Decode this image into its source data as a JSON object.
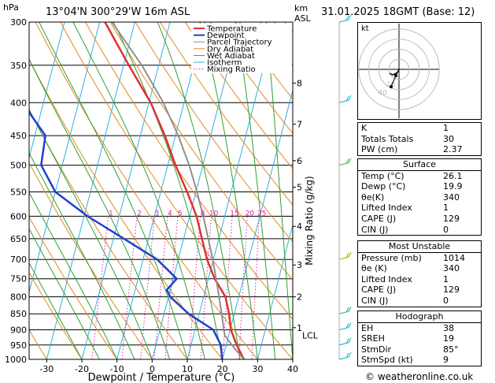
{
  "header": {
    "units_left": "hPa",
    "location": "13°04'N  300°29'W  16m  ASL",
    "units_right": "km",
    "units_right2": "ASL",
    "datetime": "31.01.2025  18GMT  (Base: 12)"
  },
  "chart_data": {
    "type": "line",
    "title": "",
    "xlabel": "Dewpoint / Temperature (°C)",
    "ylabel": "hPa",
    "y2label": "Mixing Ratio (g/kg)",
    "xlim": [
      -35,
      40
    ],
    "ylim": [
      1000,
      300
    ],
    "x_ticks": [
      -30,
      -20,
      -10,
      0,
      10,
      20,
      30,
      40
    ],
    "pressure_ticks": [
      300,
      350,
      400,
      450,
      500,
      550,
      600,
      650,
      700,
      750,
      800,
      850,
      900,
      950,
      1000
    ],
    "km_ticks": [
      {
        "label": "1",
        "p": 893
      },
      {
        "label": "2",
        "p": 800
      },
      {
        "label": "3",
        "p": 714
      },
      {
        "label": "4",
        "p": 622
      },
      {
        "label": "5",
        "p": 541
      },
      {
        "label": "6",
        "p": 492
      },
      {
        "label": "7",
        "p": 432
      },
      {
        "label": "8",
        "p": 373
      }
    ],
    "lcl": {
      "label": "LCL",
      "p": 918
    },
    "mixing_ratio_labels": [
      "1",
      "2",
      "3",
      "4",
      "5",
      "8",
      "10",
      "15",
      "20",
      "25"
    ],
    "mixing_ratios": [
      1,
      2,
      3,
      4,
      5,
      8,
      10,
      15,
      20,
      25
    ],
    "legend": [
      "Temperature",
      "Dewpoint",
      "Parcel Trajectory",
      "Dry Adiabat",
      "Wet Adiabat",
      "Isotherm",
      "Mixing Ratio"
    ],
    "legend_position": "top-right",
    "series": [
      {
        "name": "Temperature",
        "color": "#e03030",
        "p": [
          1000,
          950,
          900,
          850,
          800,
          750,
          700,
          650,
          600,
          550,
          500,
          450,
          400,
          350,
          300
        ],
        "values": [
          26.1,
          23.0,
          20.2,
          18.5,
          16.2,
          11.8,
          8.2,
          5.2,
          2.0,
          -2.5,
          -7.8,
          -13.0,
          -19.5,
          -28.5,
          -38.5
        ]
      },
      {
        "name": "Dewpoint",
        "color": "#2040d0",
        "p": [
          1000,
          950,
          900,
          850,
          800,
          780,
          750,
          700,
          650,
          600,
          550,
          500,
          450,
          400,
          350,
          300
        ],
        "values": [
          19.9,
          18.5,
          15.2,
          7.0,
          0.5,
          -1.0,
          1.0,
          -6.0,
          -17.0,
          -29.0,
          -40.0,
          -46.0,
          -47.0,
          -56.0,
          -63.0,
          -70.0
        ]
      },
      {
        "name": "Parcel Trajectory",
        "color": "#909090",
        "p": [
          1000,
          950,
          918,
          900,
          850,
          800,
          750,
          700,
          650,
          600,
          550,
          500,
          450,
          400,
          350,
          300
        ],
        "values": [
          26.1,
          21.6,
          18.9,
          18.2,
          16.4,
          14.4,
          12.2,
          9.8,
          7.0,
          3.9,
          0.3,
          -3.9,
          -9.2,
          -15.9,
          -24.8,
          -36.5
        ]
      }
    ]
  },
  "winds": [
    {
      "p": 300,
      "color": "#30c0c0"
    },
    {
      "p": 400,
      "color": "#30c0c0"
    },
    {
      "p": 500,
      "color": "#50c050"
    },
    {
      "p": 700,
      "color": "#a0c020"
    },
    {
      "p": 850,
      "color": "#30c090"
    },
    {
      "p": 900,
      "color": "#30c0c0"
    },
    {
      "p": 950,
      "color": "#30c0c0"
    },
    {
      "p": 1000,
      "color": "#30c0c0"
    }
  ],
  "hodograph": {
    "label": "kt",
    "rings_kt": [
      10,
      20,
      30,
      40
    ],
    "ring_labels": [
      "20",
      "40"
    ]
  },
  "indices": {
    "rows": [
      {
        "label": "K",
        "value": "1"
      },
      {
        "label": "Totals Totals",
        "value": "30"
      },
      {
        "label": "PW (cm)",
        "value": "2.37"
      }
    ]
  },
  "surface": {
    "title": "Surface",
    "rows": [
      {
        "label": "Temp (°C)",
        "value": "26.1"
      },
      {
        "label": "Dewp (°C)",
        "value": "19.9"
      },
      {
        "label": "θe(K)",
        "value": "340"
      },
      {
        "label": "Lifted Index",
        "value": "1"
      },
      {
        "label": "CAPE (J)",
        "value": "129"
      },
      {
        "label": "CIN (J)",
        "value": "0"
      }
    ]
  },
  "unstable": {
    "title": "Most Unstable",
    "rows": [
      {
        "label": "Pressure (mb)",
        "value": "1014"
      },
      {
        "label": "θe (K)",
        "value": "340"
      },
      {
        "label": "Lifted Index",
        "value": "1"
      },
      {
        "label": "CAPE (J)",
        "value": "129"
      },
      {
        "label": "CIN (J)",
        "value": "0"
      }
    ]
  },
  "hodo_stats": {
    "title": "Hodograph",
    "rows": [
      {
        "label": "EH",
        "value": "38"
      },
      {
        "label": "SREH",
        "value": "19"
      },
      {
        "label": "StmDir",
        "value": "85°"
      },
      {
        "label": "StmSpd (kt)",
        "value": "9"
      }
    ]
  },
  "credit": "© weatheronline.co.uk",
  "colors": {
    "temperature": "#e03030",
    "dewpoint": "#2040d0",
    "parcel": "#909090",
    "dry_adiabat": "#e08a20",
    "wet_adiabat": "#30a030",
    "isotherm": "#30b0e0",
    "mixing_ratio": "#e020a0"
  }
}
